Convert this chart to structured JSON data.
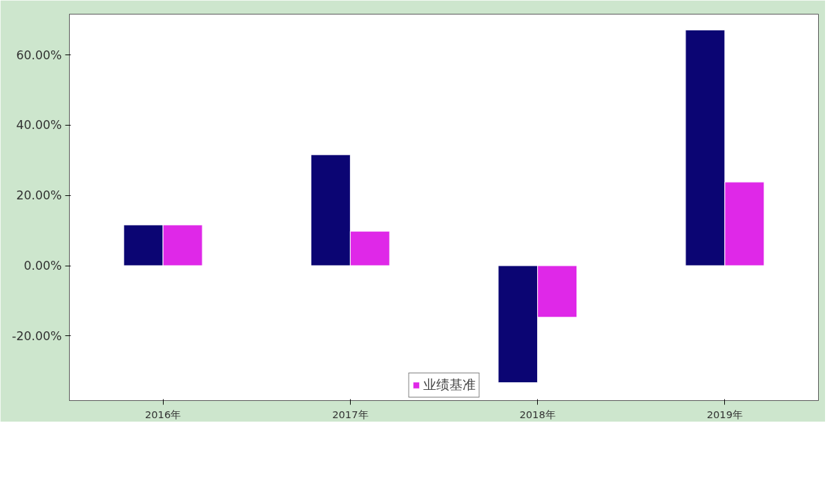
{
  "chart_data": {
    "type": "bar",
    "categories": [
      "2016年",
      "2017年",
      "2018年",
      "2019年"
    ],
    "series": [
      {
        "color": "#0b0573",
        "values": [
          11.6,
          31.6,
          -33.3,
          67.1
        ]
      },
      {
        "name": "业绩基准",
        "color": "#df28e8",
        "values": [
          11.6,
          9.8,
          -14.7,
          23.8
        ]
      }
    ],
    "ylim": [
      -38.4,
      71.6
    ],
    "yticks": [
      {
        "value": -20,
        "label": "-20.00%"
      },
      {
        "value": 0,
        "label": "0.00%"
      },
      {
        "value": 20,
        "label": "20.00%"
      },
      {
        "value": 40,
        "label": "40.00%"
      },
      {
        "value": 60,
        "label": "60.00%"
      }
    ],
    "grid": false,
    "legend": "bottom"
  }
}
